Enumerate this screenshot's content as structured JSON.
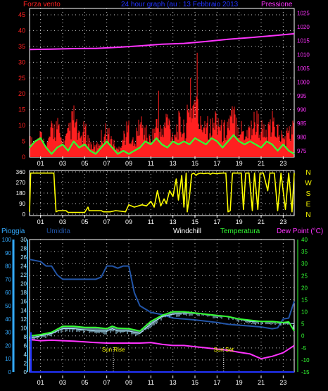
{
  "colors": {
    "bg": "#000000",
    "frame": "#ffffff",
    "grid": "#ffffff",
    "red": "#ff2020",
    "green": "#33ff33",
    "magenta": "#ff33ff",
    "blue": "#2233ff",
    "yellow": "#ffff00",
    "navy": "#2255a8",
    "lightblue": "#aee8ff",
    "cyan": "#33aaff",
    "white": "#ffffff"
  },
  "chart_data": [
    {
      "type": "line",
      "title": "24 hour graph (au : 13 Febbraio 2013",
      "left_label": "Forza vento",
      "right_label": "Pressione",
      "x_ticks": [
        "01",
        "03",
        "05",
        "07",
        "09",
        "11",
        "13",
        "15",
        "17",
        "19",
        "21",
        "23"
      ],
      "ylim_left": [
        0,
        47
      ],
      "y_ticks_left": [
        "0",
        "5",
        "10",
        "15",
        "20",
        "25",
        "30",
        "35",
        "40",
        "45"
      ],
      "ylim_right": [
        972.7,
        1026.7
      ],
      "y_ticks_right": [
        "975",
        "980",
        "985",
        "990",
        "995",
        "1000",
        "1005",
        "1010",
        "1015",
        "1020",
        "1025"
      ],
      "series": [
        {
          "key": "pressure",
          "axis": "right",
          "x": [
            0,
            2,
            4,
            6,
            8,
            10,
            12,
            14,
            16,
            18,
            20,
            22,
            24
          ],
          "values": [
            1011.8,
            1011.9,
            1012.1,
            1012.2,
            1012.6,
            1013.1,
            1013.7,
            1014.0,
            1014.7,
            1015.5,
            1016.1,
            1016.8,
            1017.5
          ]
        },
        {
          "key": "gust",
          "axis": "left",
          "x": [
            0,
            0.5,
            1,
            1.5,
            2,
            2.5,
            3,
            3.5,
            4,
            4.5,
            5,
            5.5,
            6,
            6.5,
            7,
            7.5,
            8,
            8.5,
            9,
            9.5,
            10,
            10.5,
            11,
            11.5,
            12,
            12.5,
            13,
            13.5,
            14,
            14.5,
            15,
            15.5,
            16,
            16.5,
            17,
            17.5,
            18,
            18.5,
            19,
            19.5,
            20,
            20.5,
            21,
            21.5,
            22,
            22.5,
            23,
            23.5,
            24
          ],
          "values": [
            8,
            6,
            10,
            4,
            12,
            14,
            6,
            10,
            18,
            8,
            12,
            6,
            4,
            9,
            12,
            7,
            3,
            9,
            13,
            5,
            16,
            11,
            7,
            15,
            10,
            18,
            9,
            15,
            12,
            20,
            26,
            14,
            18,
            12,
            19,
            11,
            15,
            18,
            14,
            11,
            13,
            17,
            13,
            9,
            15,
            12,
            8,
            11,
            13
          ]
        },
        {
          "key": "wind_avg",
          "axis": "left",
          "x": [
            0,
            0.5,
            1,
            1.5,
            2,
            2.5,
            3,
            3.5,
            4,
            4.5,
            5,
            5.5,
            6,
            6.5,
            7,
            7.5,
            8,
            8.5,
            9,
            9.5,
            10,
            10.5,
            11,
            11.5,
            12,
            12.5,
            13,
            13.5,
            14,
            14.5,
            15,
            15.5,
            16,
            16.5,
            17,
            17.5,
            18,
            18.5,
            19,
            19.5,
            20,
            20.5,
            21,
            21.5,
            22,
            22.5,
            23,
            23.5,
            24
          ],
          "values": [
            3,
            5,
            6,
            3,
            1,
            3,
            4,
            2,
            5,
            3,
            4,
            2,
            1,
            3,
            5,
            3,
            1,
            2,
            1,
            2,
            3,
            5,
            4,
            6,
            4,
            3,
            5,
            4,
            5,
            4,
            6,
            5,
            4,
            6,
            5,
            3,
            5,
            7,
            5,
            4,
            5,
            4,
            3,
            5,
            4,
            2,
            4,
            2,
            1
          ]
        },
        {
          "key": "wind_spikes",
          "axis": "left",
          "x": [
            11.7,
            14.6,
            15.2
          ],
          "values": [
            21,
            25,
            33
          ]
        }
      ]
    },
    {
      "type": "line",
      "x_ticks": [
        "01",
        "03",
        "05",
        "07",
        "09",
        "11",
        "13",
        "15",
        "17",
        "19",
        "21",
        "23"
      ],
      "ylim": [
        0,
        360
      ],
      "y_ticks": [
        "0",
        "90",
        "180",
        "270",
        "360"
      ],
      "compass_labels": [
        "N",
        "W",
        "S",
        "E",
        "N"
      ],
      "series": [
        {
          "key": "wind_direction",
          "x": [
            0,
            0.1,
            2.2,
            2.4,
            2.6,
            3.3,
            3.5,
            5.0,
            5.3,
            5.4,
            6.5,
            6.7,
            7.3,
            7.8,
            8.3,
            8.7,
            9.0,
            9.5,
            10.2,
            10.6,
            11.0,
            11.3,
            11.6,
            11.9,
            12.2,
            12.4,
            12.7,
            13.0,
            13.3,
            13.5,
            13.8,
            14.0,
            14.2,
            14.3,
            14.5,
            14.7,
            14.9,
            15.1,
            15.2,
            15.5,
            15.8,
            16.2,
            16.4,
            16.6,
            16.9,
            17.5,
            17.8,
            18.0,
            18.2,
            18.4,
            18.6,
            19.2,
            19.4,
            19.6,
            19.9,
            20.2,
            20.4,
            20.7,
            20.9,
            21.2,
            21.6,
            21.8,
            22.2,
            22.5,
            22.8,
            23.2,
            23.5,
            23.8,
            24
          ],
          "values": [
            20,
            350,
            350,
            20,
            30,
            30,
            15,
            15,
            60,
            30,
            30,
            20,
            20,
            30,
            25,
            20,
            80,
            60,
            80,
            70,
            110,
            60,
            200,
            70,
            130,
            90,
            200,
            150,
            300,
            120,
            330,
            60,
            350,
            20,
            150,
            340,
            350,
            330,
            340,
            350,
            345,
            350,
            340,
            350,
            345,
            350,
            350,
            20,
            30,
            350,
            350,
            350,
            40,
            350,
            350,
            30,
            350,
            40,
            350,
            350,
            200,
            350,
            350,
            30,
            350,
            40,
            350,
            20,
            350
          ]
        }
      ]
    },
    {
      "type": "line",
      "legend": [
        "Pioggia",
        "Umidita",
        "Windchill",
        "Temperatura",
        "Dew Point (°C)"
      ],
      "x_ticks": [
        "01",
        "03",
        "05",
        "07",
        "09",
        "11",
        "13",
        "15",
        "17",
        "19",
        "21",
        "23"
      ],
      "ylim_rain": [
        0,
        100
      ],
      "y_ticks_rain": [
        "0",
        "10",
        "20",
        "30",
        "40",
        "50",
        "60",
        "70",
        "80",
        "90",
        "100"
      ],
      "ylim_humidity": [
        0,
        30
      ],
      "y_ticks_humidity": [
        "0",
        "2",
        "4",
        "6",
        "8",
        "10",
        "12",
        "14",
        "16",
        "18",
        "20",
        "22",
        "24",
        "26",
        "28",
        "30"
      ],
      "ylim_temp": [
        -15,
        40
      ],
      "y_ticks_temp": [
        "-15",
        "-10",
        "-5",
        "0",
        "5",
        "10",
        "15",
        "20",
        "25",
        "30",
        "35",
        "40"
      ],
      "annotations": [
        {
          "label": "Sun Rise",
          "x": 7.6
        },
        {
          "label": "Sun Set",
          "x": 17.6
        }
      ],
      "series": [
        {
          "key": "humidity",
          "axis": "humidity",
          "x": [
            0,
            1,
            1.5,
            2,
            2.5,
            3,
            3.5,
            4,
            5,
            6,
            6.5,
            7,
            7.5,
            8,
            8.5,
            9,
            9.5,
            10,
            11,
            12,
            13,
            14,
            15,
            16,
            17,
            18,
            19,
            20,
            21,
            22,
            22.5,
            23,
            23.5,
            24
          ],
          "values": [
            25.5,
            25,
            24,
            24,
            22,
            21,
            21,
            21,
            21,
            21,
            21.5,
            24,
            24,
            23.5,
            24,
            24,
            18,
            15,
            13.5,
            13,
            12.2,
            12,
            11.8,
            11.5,
            11.2,
            10.8,
            10.6,
            10.4,
            10.2,
            9.8,
            10,
            12,
            12.2,
            16
          ]
        },
        {
          "key": "windchill",
          "axis": "temp",
          "x": [
            0,
            1,
            2,
            3,
            4,
            5,
            6,
            7,
            7.5,
            8,
            9,
            10,
            11,
            12,
            13,
            14,
            15,
            16,
            17,
            18,
            19,
            20,
            21,
            22,
            23,
            24
          ],
          "values": [
            -1,
            0,
            1,
            3,
            3,
            2.5,
            2,
            2,
            3,
            2,
            2,
            1,
            5,
            8,
            9,
            9.5,
            9.5,
            9,
            8.5,
            8,
            7,
            6,
            6,
            6,
            5.5,
            5
          ]
        },
        {
          "key": "temperature",
          "axis": "temp",
          "x": [
            0,
            1,
            2,
            3,
            4,
            5,
            6,
            7,
            7.5,
            8,
            9,
            10,
            11,
            12,
            13,
            14,
            15,
            16,
            17,
            18,
            19,
            20,
            21,
            22,
            23,
            23.5,
            24
          ],
          "values": [
            0,
            0.5,
            1.5,
            4,
            4,
            3.5,
            3.5,
            3,
            4,
            3.2,
            3,
            2,
            6,
            8.5,
            10,
            10,
            9.5,
            9,
            8.5,
            8,
            7,
            6.5,
            6,
            6,
            5.5,
            5.8,
            2
          ]
        },
        {
          "key": "dew_point",
          "axis": "temp",
          "x": [
            0,
            1,
            2,
            3,
            4,
            5,
            6,
            7,
            8,
            9,
            10,
            11,
            12,
            13,
            14,
            15,
            16,
            17,
            18,
            19,
            20,
            21,
            22,
            23,
            24
          ],
          "values": [
            -1.5,
            -2,
            -1.8,
            -2,
            -2.2,
            -2.5,
            -2.8,
            -3,
            -3,
            -3,
            -3,
            -2.8,
            -3.5,
            -4,
            -4,
            -4.5,
            -5,
            -5.5,
            -6,
            -6.8,
            -7.5,
            -9.5,
            -8.5,
            -7,
            -4
          ]
        },
        {
          "key": "rain",
          "axis": "rain",
          "x": [
            0,
            24
          ],
          "values": [
            0,
            0
          ]
        }
      ]
    }
  ]
}
